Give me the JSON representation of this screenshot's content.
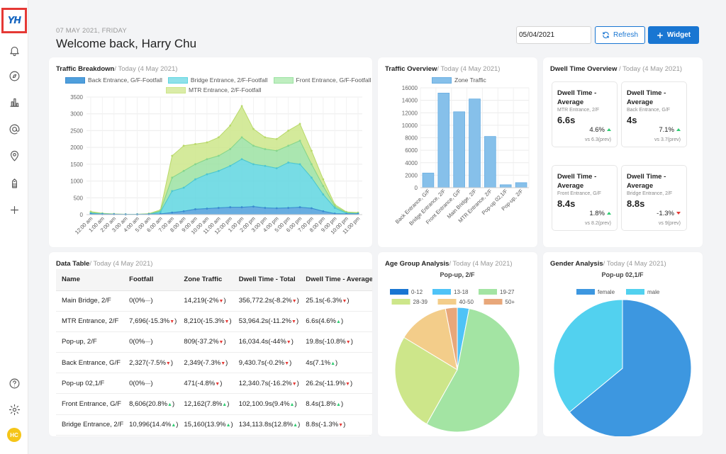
{
  "app": {
    "logo_text": "YH"
  },
  "sidebar": {
    "icons": [
      "bell-icon",
      "compass-icon",
      "bar-chart-icon",
      "at-sign-icon",
      "map-pin-icon",
      "building-icon",
      "plus-icon",
      "help-icon",
      "settings-icon"
    ],
    "avatar_initials": "HC"
  },
  "header": {
    "date": "07 MAY 2021, FRIDAY",
    "greeting": "Welcome back, Harry Chu",
    "date_value": "05/04/2021",
    "refresh_label": "Refresh",
    "widget_label": "Widget"
  },
  "traffic_breakdown": {
    "title": "Traffic Breakdown",
    "subtitle": "/ Today (4 May 2021)",
    "legend": [
      "Back Entrance, G/F-Footfall",
      "Bridge Entrance, 2/F-Footfall",
      "Front Entrance, G/F-Footfall",
      "MTR Entrance, 2/F-Footfall"
    ]
  },
  "traffic_overview": {
    "title": "Traffic Overview",
    "subtitle": "/ Today (4 May 2021)",
    "legend": "Zone Traffic"
  },
  "dwell_overview": {
    "title": "Dwell Time Overview",
    "subtitle": " / Today (4 May 2021)",
    "tiles": [
      {
        "title": "Dwell Time - Average",
        "location": "MTR Entrance, 2/F",
        "value": "6.6s",
        "change": "4.6%",
        "direction": "up",
        "prev": "vs 6.3(prev)"
      },
      {
        "title": "Dwell Time - Average",
        "location": "Back Entrance, G/F",
        "value": "4s",
        "change": "7.1%",
        "direction": "up",
        "prev": "vs 3.7(prev)"
      },
      {
        "title": "Dwell Time - Average",
        "location": "Front Entrance, G/F",
        "value": "8.4s",
        "change": "1.8%",
        "direction": "up",
        "prev": "vs 8.2(prev)"
      },
      {
        "title": "Dwell Time - Average",
        "location": "Bridge Entrance, 2/F",
        "value": "8.8s",
        "change": "-1.3%",
        "direction": "down",
        "prev": "vs 9(prev)"
      }
    ]
  },
  "data_table": {
    "title": "Data Table",
    "subtitle": "/ Today (4 May 2021)",
    "columns": [
      "Name",
      "Footfall",
      "Zone Traffic",
      "Dwell Time - Total",
      "Dwell Time - Average"
    ],
    "rows": [
      {
        "name": "Main Bridge, 2/F",
        "footfall": "0(0%",
        "footfall_dir": "flat",
        "zone": "14,219(-2%",
        "zone_dir": "down",
        "dwell_total": "356,772.2s(-8.2%",
        "dwell_total_dir": "down",
        "dwell_avg": "25.1s(-6.3%",
        "dwell_avg_dir": "down"
      },
      {
        "name": "MTR Entrance, 2/F",
        "footfall": "7,696(-15.3%",
        "footfall_dir": "down",
        "zone": "8,210(-15.3%",
        "zone_dir": "down",
        "dwell_total": "53,964.2s(-11.2%",
        "dwell_total_dir": "down",
        "dwell_avg": "6.6s(4.6%",
        "dwell_avg_dir": "up"
      },
      {
        "name": "Pop-up, 2/F",
        "footfall": "0(0%",
        "footfall_dir": "flat",
        "zone": "809(-37.2%",
        "zone_dir": "down",
        "dwell_total": "16,034.4s(-44%",
        "dwell_total_dir": "down",
        "dwell_avg": "19.8s(-10.8%",
        "dwell_avg_dir": "down"
      },
      {
        "name": "Back Entrance, G/F",
        "footfall": "2,327(-7.5%",
        "footfall_dir": "down",
        "zone": "2,349(-7.3%",
        "zone_dir": "down",
        "dwell_total": "9,430.7s(-0.2%",
        "dwell_total_dir": "down",
        "dwell_avg": "4s(7.1%",
        "dwell_avg_dir": "up"
      },
      {
        "name": "Pop-up 02,1/F",
        "footfall": "0(0%",
        "footfall_dir": "flat",
        "zone": "471(-4.8%",
        "zone_dir": "down",
        "dwell_total": "12,340.7s(-16.2%",
        "dwell_total_dir": "down",
        "dwell_avg": "26.2s(-11.9%",
        "dwell_avg_dir": "down"
      },
      {
        "name": "Front Entrance, G/F",
        "footfall": "8,606(20.8%",
        "footfall_dir": "up",
        "zone": "12,162(7.8%",
        "zone_dir": "up",
        "dwell_total": "102,100.9s(9.4%",
        "dwell_total_dir": "up",
        "dwell_avg": "8.4s(1.8%",
        "dwell_avg_dir": "up"
      },
      {
        "name": "Bridge Entrance, 2/F",
        "footfall": "10,996(14.4%",
        "footfall_dir": "up",
        "zone": "15,160(13.9%",
        "zone_dir": "up",
        "dwell_total": "134,113.8s(12.8%",
        "dwell_total_dir": "up",
        "dwell_avg": "8.8s(-1.3%",
        "dwell_avg_dir": "down"
      }
    ]
  },
  "age_group": {
    "title": "Age Group Analysis",
    "subtitle": "/ Today (4 May 2021)",
    "chart_title": "Pop-up, 2/F"
  },
  "gender": {
    "title": "Gender Analysis",
    "subtitle": "/ Today (4 May 2021)",
    "chart_title": "Pop-up 02,1/F"
  },
  "colors": {
    "primary": "#1976d2",
    "back_entrance": "#4f9fdc",
    "bridge_entrance": "#5fd6e0",
    "front_entrance": "#9be2a2",
    "mtr_entrance": "#cde68a",
    "zone_traffic": "#86c0ea",
    "up": "#2ecc71",
    "down": "#e53935"
  },
  "chart_data": [
    {
      "type": "area",
      "id": "traffic_breakdown",
      "x": [
        "12:00 am",
        "1:00 am",
        "2:00 am",
        "3:00 am",
        "4:00 am",
        "5:00 am",
        "6:00 am",
        "7:00 am",
        "8:00 am",
        "9:00 am",
        "10:00 am",
        "11:00 am",
        "12:00 pm",
        "1:00 pm",
        "2:00 pm",
        "3:00 pm",
        "4:00 pm",
        "5:00 pm",
        "6:00 pm",
        "7:00 pm",
        "8:00 pm",
        "9:00 pm",
        "10:00 pm",
        "11:00 pm"
      ],
      "ylim": [
        0,
        3500
      ],
      "yticks": [
        0,
        500,
        1000,
        1500,
        2000,
        2500,
        3000,
        3500
      ],
      "stacked": true,
      "stack_totals": [
        {
          "name": "Back Entrance, G/F-Footfall",
          "values": [
            20,
            10,
            10,
            5,
            5,
            10,
            20,
            60,
            100,
            160,
            180,
            200,
            220,
            220,
            240,
            200,
            190,
            200,
            220,
            190,
            100,
            30,
            20,
            20
          ]
        },
        {
          "name": "Bridge Entrance, 2/F-Footfall",
          "values": [
            40,
            20,
            10,
            5,
            5,
            10,
            80,
            700,
            800,
            1050,
            1200,
            1300,
            1450,
            1650,
            1500,
            1450,
            1380,
            1550,
            1500,
            1100,
            600,
            200,
            40,
            30
          ]
        },
        {
          "name": "Front Entrance, G/F-Footfall",
          "values": [
            60,
            30,
            15,
            10,
            10,
            20,
            110,
            1100,
            1300,
            1500,
            1650,
            1750,
            1950,
            2300,
            2050,
            1950,
            1900,
            2050,
            2200,
            1500,
            850,
            250,
            60,
            40
          ]
        },
        {
          "name": "MTR Entrance, 2/F-Footfall",
          "values": [
            90,
            40,
            20,
            10,
            10,
            30,
            140,
            1750,
            2050,
            2100,
            2150,
            2300,
            2650,
            3230,
            2550,
            2300,
            2250,
            2500,
            2700,
            1900,
            1050,
            300,
            80,
            60
          ]
        }
      ]
    },
    {
      "type": "bar",
      "id": "traffic_overview",
      "categories": [
        "Back Entrance, G/F",
        "Bridge Entrance, 2/F",
        "Front Entrance, G/F",
        "Main Bridge, 2/F",
        "MTR Entrance, 2/F",
        "Pop-up 02,1/F",
        "Pop-up, 2/F"
      ],
      "values": [
        2349,
        15160,
        12162,
        14219,
        8210,
        471,
        809
      ],
      "ylim": [
        0,
        16000
      ],
      "yticks": [
        0,
        2000,
        4000,
        6000,
        8000,
        10000,
        12000,
        14000,
        16000
      ],
      "legend": "Zone Traffic"
    },
    {
      "type": "pie",
      "id": "age_group",
      "title": "Pop-up, 2/F",
      "slices": [
        {
          "label": "0-12",
          "value": 0,
          "color": "#1976d2"
        },
        {
          "label": "13-18",
          "value": 3,
          "color": "#4fc3f7"
        },
        {
          "label": "19-27",
          "value": 54,
          "color": "#a3e4a3"
        },
        {
          "label": "28-39",
          "value": 25,
          "color": "#cde68a"
        },
        {
          "label": "40-50",
          "value": 13,
          "color": "#f3cd8a"
        },
        {
          "label": "50+",
          "value": 3,
          "color": "#e8a77a"
        }
      ]
    },
    {
      "type": "pie",
      "id": "gender",
      "title": "Pop-up 02,1/F",
      "slices": [
        {
          "label": "female",
          "value": 64,
          "color": "#3d97e0"
        },
        {
          "label": "male",
          "value": 36,
          "color": "#52d1ef"
        }
      ]
    }
  ]
}
